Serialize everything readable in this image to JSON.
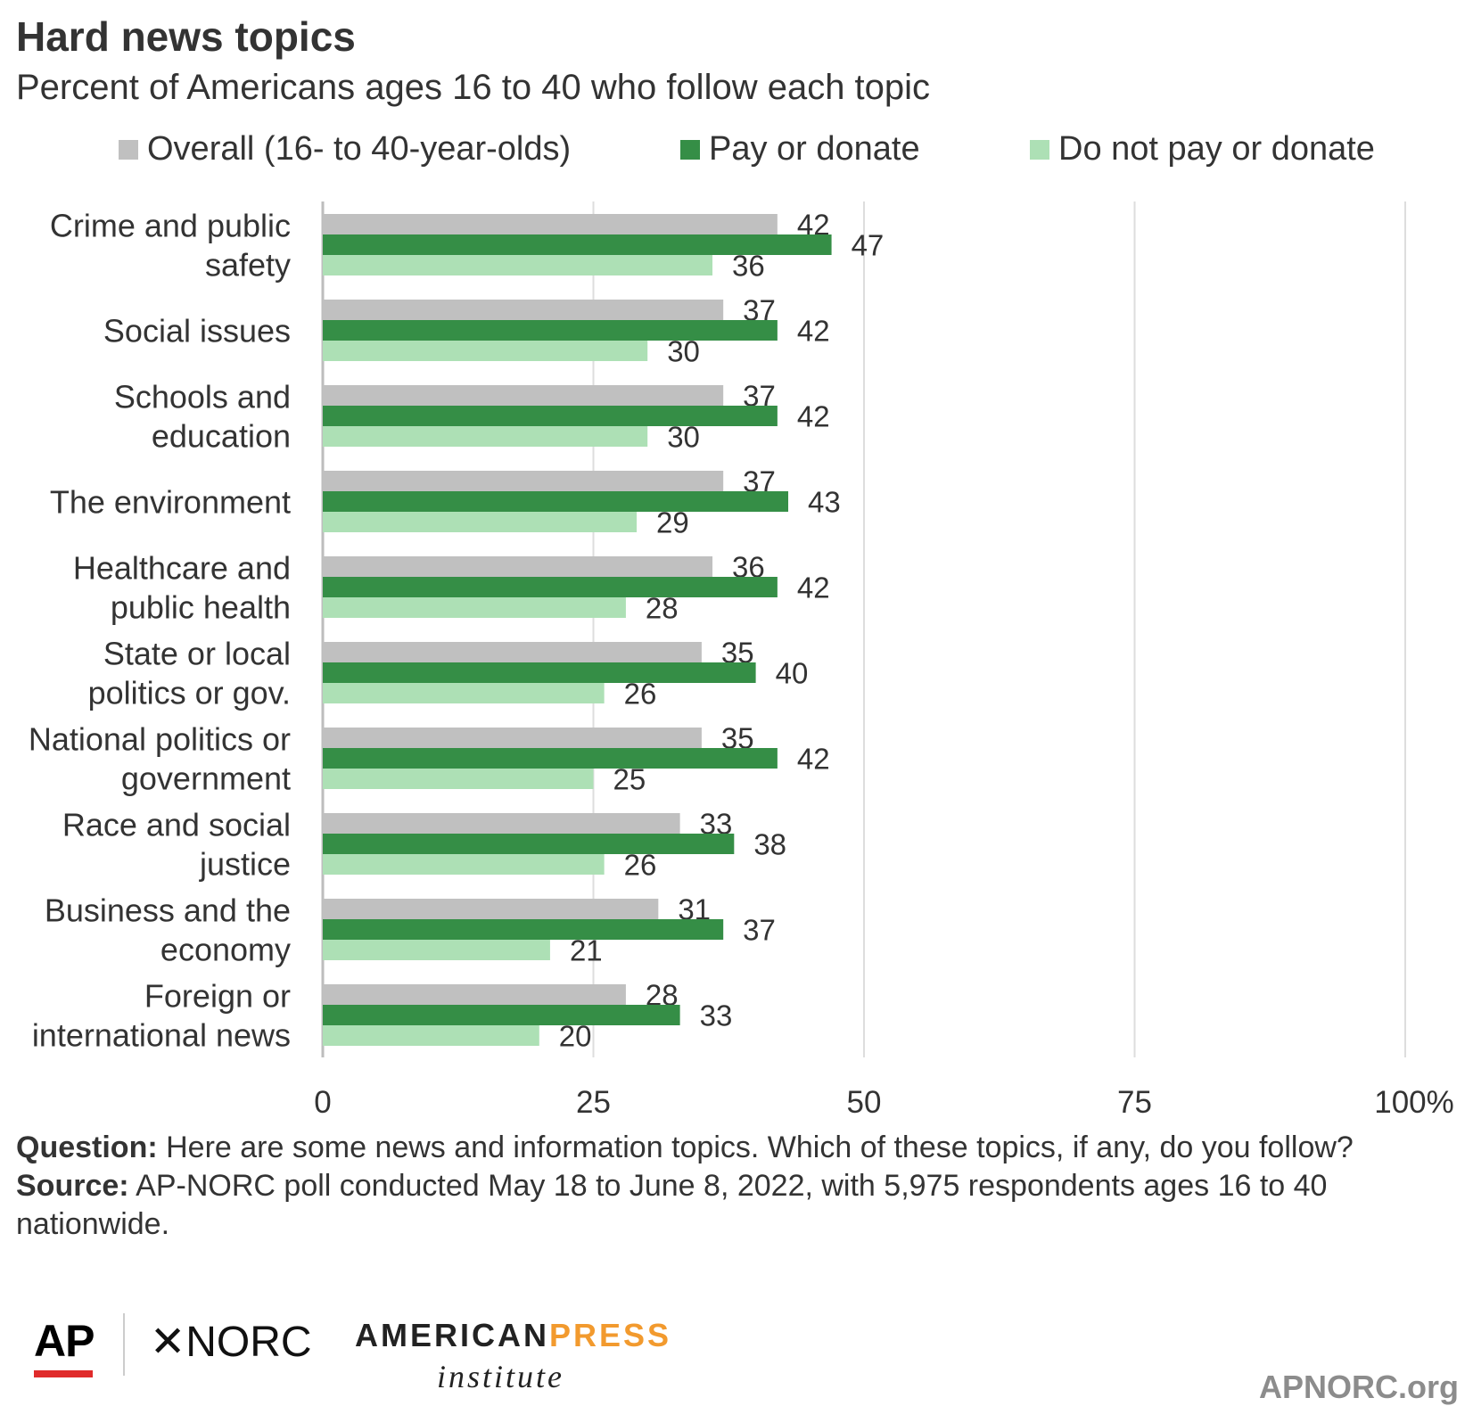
{
  "title": "Hard news topics",
  "subtitle": "Percent of Americans ages 16 to 40 who follow each topic",
  "legend": [
    {
      "label": "Overall (16- to 40-year-olds)",
      "color": "#c0c0c0"
    },
    {
      "label": "Pay or donate",
      "color": "#358e46"
    },
    {
      "label": "Do not pay or donate",
      "color": "#ade0b5"
    }
  ],
  "chart_data": {
    "type": "bar",
    "orientation": "horizontal",
    "categories": [
      [
        "Crime and public",
        "safety"
      ],
      [
        "Social issues"
      ],
      [
        "Schools and",
        "education"
      ],
      [
        "The environment"
      ],
      [
        "Healthcare and",
        "public health"
      ],
      [
        "State or local",
        "politics or gov."
      ],
      [
        "National politics or",
        "government"
      ],
      [
        "Race and social",
        "justice"
      ],
      [
        "Business and the",
        "economy"
      ],
      [
        "Foreign or",
        "international news"
      ]
    ],
    "series": [
      {
        "name": "Overall (16- to 40-year-olds)",
        "color": "#c0c0c0",
        "values": [
          42,
          37,
          37,
          37,
          36,
          35,
          35,
          33,
          31,
          28
        ]
      },
      {
        "name": "Pay or donate",
        "color": "#358e46",
        "values": [
          47,
          42,
          42,
          43,
          42,
          40,
          42,
          38,
          37,
          33
        ]
      },
      {
        "name": "Do not pay or donate",
        "color": "#ade0b5",
        "values": [
          36,
          30,
          30,
          29,
          28,
          26,
          25,
          26,
          21,
          20
        ]
      }
    ],
    "xlim": [
      0,
      100
    ],
    "xticks": [
      0,
      25,
      50,
      75,
      100
    ],
    "xtick_labels": [
      "0",
      "25",
      "50",
      "75",
      "100%"
    ],
    "grid": true,
    "legend_position": "top"
  },
  "notes": {
    "question_label": "Question:",
    "question_text": "Here are some news and information topics. Which of these topics, if any, do you follow?",
    "source_label": "Source:",
    "source_text": "AP-NORC poll conducted May 18 to June 8, 2022, with 5,975 respondents ages 16 to 40 nationwide."
  },
  "logos": {
    "ap": "AP",
    "norc": "✕NORC",
    "api_american": "AMERICAN",
    "api_press": "PRESS",
    "api_institute": "institute",
    "site": "APNORC.org"
  }
}
